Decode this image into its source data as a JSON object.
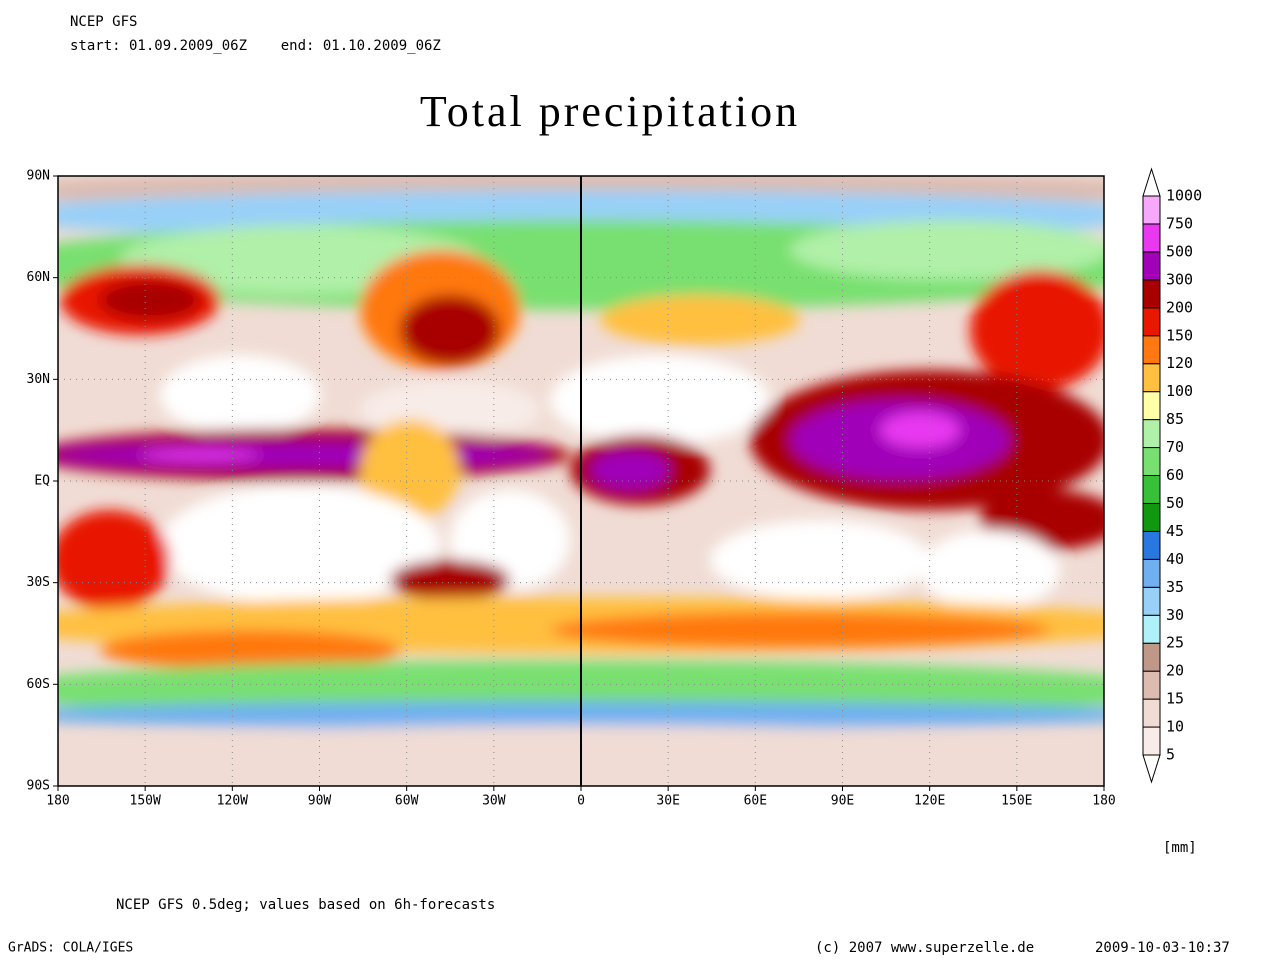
{
  "header": {
    "source": "NCEP GFS",
    "period": "start: 01.09.2009_06Z    end: 01.10.2009_06Z"
  },
  "title": "Total precipitation",
  "map": {
    "lat_labels": [
      "90N",
      "60N",
      "30N",
      "EQ",
      "30S",
      "60S",
      "90S"
    ],
    "lon_labels": [
      "180",
      "150W",
      "120W",
      "90W",
      "60W",
      "30W",
      "0",
      "30E",
      "60E",
      "90E",
      "120E",
      "150E",
      "180"
    ]
  },
  "colorbar": {
    "levels": [
      5,
      10,
      15,
      20,
      25,
      30,
      35,
      40,
      45,
      50,
      60,
      70,
      85,
      100,
      120,
      150,
      200,
      300,
      500,
      750,
      1000
    ],
    "colors": [
      "#ffffff",
      "#f8ece8",
      "#f0dcd4",
      "#dcbcb0",
      "#c09888",
      "#b0f0f8",
      "#98d0f8",
      "#70b0f0",
      "#2878e0",
      "#109810",
      "#38c038",
      "#78e070",
      "#b0f0a8",
      "#ffffa8",
      "#ffc040",
      "#ff7810",
      "#e81800",
      "#a80000",
      "#a000b8",
      "#e838f0",
      "#f8a8f8",
      "#ffffff"
    ],
    "unit": "[mm]"
  },
  "footer": {
    "note": "NCEP GFS 0.5deg; values based on 6h-forecasts",
    "software": "GrADS: COLA/IGES",
    "credit": "(c) 2007 www.superzelle.de",
    "timestamp": "2009-10-03-10:37"
  }
}
